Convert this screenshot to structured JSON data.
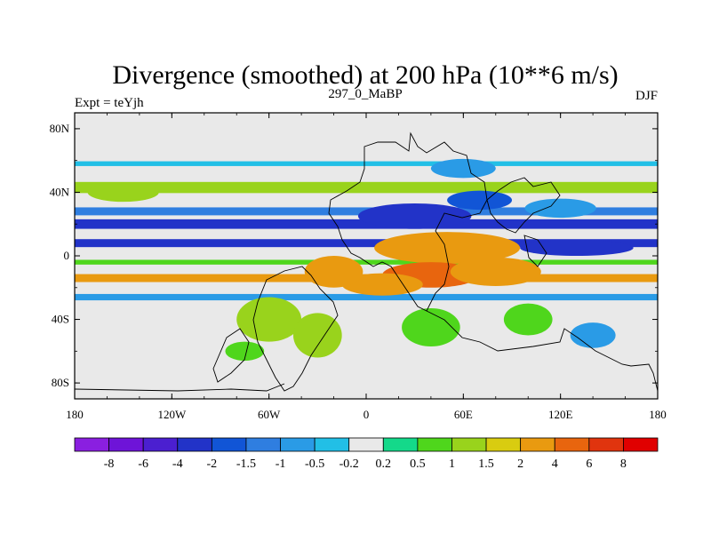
{
  "chart_data": {
    "type": "heatmap",
    "title": "Divergence (smoothed) at 200 hPa (10**6 m/s)",
    "left_label": "Expt = teYjh",
    "center_label": "297_0_MaBP",
    "right_label": "DJF",
    "x_ticks": [
      "180",
      "120W",
      "60W",
      "0",
      "60E",
      "120E",
      "180"
    ],
    "y_ticks": [
      "80N",
      "40N",
      "0",
      "40S",
      "80S"
    ],
    "xlim": [
      -180,
      180
    ],
    "ylim": [
      -90,
      90
    ],
    "colorbar": {
      "labels": [
        "-8",
        "-6",
        "-4",
        "-2",
        "-1.5",
        "-1",
        "-0.5",
        "-0.2",
        "0.2",
        "0.5",
        "1",
        "1.5",
        "2",
        "4",
        "6",
        "8"
      ],
      "colors": [
        "#8a1fe0",
        "#6e14d8",
        "#4b1fd0",
        "#2233c8",
        "#1155d6",
        "#2f7ee0",
        "#2a9be6",
        "#22bfe6",
        "#e9e9e9",
        "#14d98a",
        "#4fd61c",
        "#99d31c",
        "#d9cc10",
        "#e99a10",
        "#e8650e",
        "#e0340e",
        "#e00000"
      ]
    },
    "bands": [
      {
        "lat": 43,
        "width": 7,
        "value": 1.2
      },
      {
        "lat": 28,
        "width": 5,
        "value": -1.2
      },
      {
        "lat": 20,
        "width": 6,
        "value": -2.5
      },
      {
        "lat": 8,
        "width": 5,
        "value": -3.0
      },
      {
        "lat": -4,
        "width": 3,
        "value": 0.8
      },
      {
        "lat": -14,
        "width": 5,
        "value": 2.8
      },
      {
        "lat": -26,
        "width": 4,
        "value": -0.8
      },
      {
        "lat": 58,
        "width": 3,
        "value": -0.4
      }
    ],
    "blobs": [
      {
        "lon": 50,
        "lat": 5,
        "rx": 45,
        "ry": 10,
        "value": 3.5
      },
      {
        "lon": 40,
        "lat": -12,
        "rx": 30,
        "ry": 8,
        "value": 4.5
      },
      {
        "lon": 10,
        "lat": -18,
        "rx": 25,
        "ry": 7,
        "value": 2.5
      },
      {
        "lon": -20,
        "lat": -10,
        "rx": 18,
        "ry": 10,
        "value": 3.0
      },
      {
        "lon": 80,
        "lat": -10,
        "rx": 28,
        "ry": 9,
        "value": 3.0
      },
      {
        "lon": 30,
        "lat": 25,
        "rx": 35,
        "ry": 8,
        "value": -3.5
      },
      {
        "lon": 70,
        "lat": 35,
        "rx": 20,
        "ry": 6,
        "value": -2.0
      },
      {
        "lon": 130,
        "lat": 5,
        "rx": 35,
        "ry": 5,
        "value": -3.0
      },
      {
        "lon": -60,
        "lat": -40,
        "rx": 20,
        "ry": 14,
        "value": 1.2
      },
      {
        "lon": -30,
        "lat": -50,
        "rx": 15,
        "ry": 14,
        "value": 1.0
      },
      {
        "lon": -75,
        "lat": -60,
        "rx": 12,
        "ry": 6,
        "value": 0.6
      },
      {
        "lon": 40,
        "lat": -45,
        "rx": 18,
        "ry": 12,
        "value": 0.6
      },
      {
        "lon": 100,
        "lat": -40,
        "rx": 15,
        "ry": 10,
        "value": 0.8
      },
      {
        "lon": 140,
        "lat": -50,
        "rx": 14,
        "ry": 8,
        "value": -0.6
      },
      {
        "lon": 60,
        "lat": 55,
        "rx": 20,
        "ry": 6,
        "value": -0.7
      },
      {
        "lon": -150,
        "lat": 40,
        "rx": 22,
        "ry": 6,
        "value": 1.0
      },
      {
        "lon": 120,
        "lat": 30,
        "rx": 22,
        "ry": 6,
        "value": -1.0
      }
    ]
  }
}
